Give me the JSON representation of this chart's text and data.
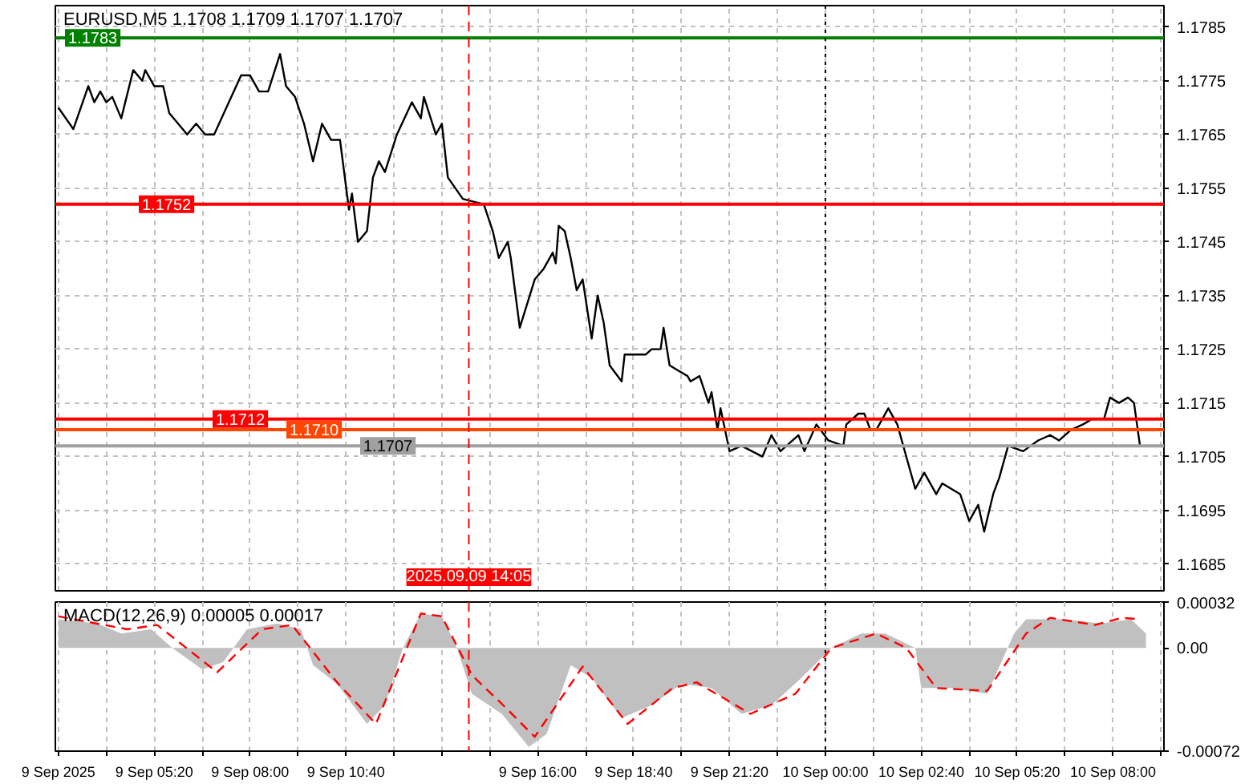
{
  "chart_data": [
    {
      "type": "line",
      "title": "EURUSD,M5 1.1708 1.1709 1.1707 1.1707",
      "color": "#000000",
      "x": [
        "2025-09-09T02:40",
        "2025-09-09T03:05",
        "2025-09-09T03:30",
        "2025-09-09T03:40",
        "2025-09-09T03:50",
        "2025-09-09T04:00",
        "2025-09-09T04:10",
        "2025-09-09T04:25",
        "2025-09-09T04:45",
        "2025-09-09T05:00",
        "2025-09-09T05:05",
        "2025-09-09T05:20",
        "2025-09-09T05:35",
        "2025-09-09T05:45",
        "2025-09-09T06:15",
        "2025-09-09T06:30",
        "2025-09-09T06:45",
        "2025-09-09T07:00",
        "2025-09-09T07:45",
        "2025-09-09T08:00",
        "2025-09-09T08:15",
        "2025-09-09T08:30",
        "2025-09-09T08:50",
        "2025-09-09T09:00",
        "2025-09-09T09:15",
        "2025-09-09T09:30",
        "2025-09-09T09:45",
        "2025-09-09T10:00",
        "2025-09-09T10:15",
        "2025-09-09T10:30",
        "2025-09-09T10:45",
        "2025-09-09T10:50",
        "2025-09-09T11:00",
        "2025-09-09T11:15",
        "2025-09-09T11:25",
        "2025-09-09T11:35",
        "2025-09-09T11:45",
        "2025-09-09T12:05",
        "2025-09-09T12:30",
        "2025-09-09T12:45",
        "2025-09-09T12:50",
        "2025-09-09T13:10",
        "2025-09-09T13:20",
        "2025-09-09T13:30",
        "2025-09-09T13:55",
        "2025-09-09T14:30",
        "2025-09-09T14:45",
        "2025-09-09T14:55",
        "2025-09-09T15:10",
        "2025-09-09T15:15",
        "2025-09-09T15:30",
        "2025-09-09T15:55",
        "2025-09-09T16:10",
        "2025-09-09T16:25",
        "2025-09-09T16:30",
        "2025-09-09T16:35",
        "2025-09-09T16:45",
        "2025-09-09T16:55",
        "2025-09-09T17:05",
        "2025-09-09T17:15",
        "2025-09-09T17:30",
        "2025-09-09T17:40",
        "2025-09-09T17:50",
        "2025-09-09T18:00",
        "2025-09-09T18:20",
        "2025-09-09T18:25",
        "2025-09-09T18:40",
        "2025-09-09T19:00",
        "2025-09-09T19:10",
        "2025-09-09T19:25",
        "2025-09-09T19:30",
        "2025-09-09T19:40",
        "2025-09-09T19:55",
        "2025-09-09T20:10",
        "2025-09-09T20:15",
        "2025-09-09T20:30",
        "2025-09-09T20:45",
        "2025-09-09T20:50",
        "2025-09-09T21:00",
        "2025-09-09T21:05",
        "2025-09-09T21:20",
        "2025-09-09T21:40",
        "2025-09-09T22:15",
        "2025-09-09T22:30",
        "2025-09-09T22:45",
        "2025-09-09T23:15",
        "2025-09-09T23:25",
        "2025-09-09T23:45",
        "2025-09-10T00:05",
        "2025-09-10T00:30",
        "2025-09-10T00:35",
        "2025-09-10T00:55",
        "2025-09-10T01:05",
        "2025-09-10T01:15",
        "2025-09-10T01:25",
        "2025-09-10T01:45",
        "2025-09-10T02:00",
        "2025-09-10T02:20",
        "2025-09-10T02:30",
        "2025-09-10T02:45",
        "2025-09-10T03:05",
        "2025-09-10T03:15",
        "2025-09-10T03:30",
        "2025-09-10T03:45",
        "2025-09-10T04:00",
        "2025-09-10T04:15",
        "2025-09-10T04:25",
        "2025-09-10T04:40",
        "2025-09-10T04:50",
        "2025-09-10T05:05",
        "2025-09-10T05:30",
        "2025-09-10T05:55",
        "2025-09-10T06:15",
        "2025-09-10T06:30",
        "2025-09-10T06:50",
        "2025-09-10T07:10",
        "2025-09-10T07:25",
        "2025-09-10T07:45",
        "2025-09-10T07:55",
        "2025-09-10T08:10",
        "2025-09-10T08:25",
        "2025-09-10T08:35",
        "2025-09-10T08:45"
      ],
      "values": [
        1.177,
        1.1766,
        1.1774,
        1.1771,
        1.1773,
        1.1771,
        1.1772,
        1.1768,
        1.1777,
        1.1775,
        1.1777,
        1.1774,
        1.1774,
        1.1769,
        1.1765,
        1.1767,
        1.1765,
        1.1765,
        1.1776,
        1.1776,
        1.1773,
        1.1773,
        1.178,
        1.1774,
        1.1772,
        1.1767,
        1.176,
        1.1767,
        1.1764,
        1.1764,
        1.1751,
        1.1754,
        1.1745,
        1.1747,
        1.1757,
        1.176,
        1.1758,
        1.1765,
        1.1771,
        1.1768,
        1.1772,
        1.1765,
        1.1767,
        1.1757,
        1.1753,
        1.1752,
        1.1747,
        1.1742,
        1.1745,
        1.1742,
        1.1729,
        1.1738,
        1.174,
        1.1743,
        1.1741,
        1.1748,
        1.1747,
        1.1742,
        1.1736,
        1.1738,
        1.1727,
        1.1735,
        1.173,
        1.1722,
        1.1719,
        1.1724,
        1.1724,
        1.1724,
        1.1725,
        1.1725,
        1.1729,
        1.1722,
        1.1721,
        1.172,
        1.1719,
        1.172,
        1.1715,
        1.1717,
        1.171,
        1.1714,
        1.1706,
        1.1707,
        1.1705,
        1.1709,
        1.1706,
        1.1709,
        1.1706,
        1.1711,
        1.1708,
        1.1707,
        1.1711,
        1.1713,
        1.1713,
        1.171,
        1.171,
        1.1714,
        1.1711,
        1.1703,
        1.1699,
        1.1702,
        1.1698,
        1.17,
        1.1699,
        1.1698,
        1.1693,
        1.1696,
        1.1691,
        1.1698,
        1.1701,
        1.1707,
        1.1706,
        1.1708,
        1.1709,
        1.1708,
        1.171,
        1.1711,
        1.1712,
        1.1712,
        1.1716,
        1.1715,
        1.1716,
        1.1715,
        1.1707
      ],
      "xlim": [
        "2025-09-09T02:35",
        "2025-09-10T09:25"
      ],
      "ylim": [
        1.168,
        1.1789
      ],
      "xticks": [
        {
          "value": "2025-09-09T02:40",
          "label": null
        },
        {
          "value": "2025-09-09T04:00",
          "label": null
        },
        {
          "value": "2025-09-09T05:20",
          "label": null
        },
        {
          "value": "2025-09-09T06:40",
          "label": null
        },
        {
          "value": "2025-09-09T08:00",
          "label": null
        },
        {
          "value": "2025-09-09T09:20",
          "label": null
        },
        {
          "value": "2025-09-09T10:40",
          "label": null
        },
        {
          "value": "2025-09-09T12:00",
          "label": null
        },
        {
          "value": "2025-09-09T13:20",
          "label": null
        },
        {
          "value": "2025-09-09T14:40",
          "label": null
        },
        {
          "value": "2025-09-09T16:00",
          "label": null
        },
        {
          "value": "2025-09-09T17:20",
          "label": null
        },
        {
          "value": "2025-09-09T18:40",
          "label": null
        },
        {
          "value": "2025-09-09T20:00",
          "label": null
        },
        {
          "value": "2025-09-09T21:20",
          "label": null
        },
        {
          "value": "2025-09-09T22:40",
          "label": null
        },
        {
          "value": "2025-09-10T00:00",
          "label": null
        },
        {
          "value": "2025-09-10T01:20",
          "label": null
        },
        {
          "value": "2025-09-10T02:40",
          "label": null
        },
        {
          "value": "2025-09-10T04:00",
          "label": null
        },
        {
          "value": "2025-09-10T05:20",
          "label": null
        },
        {
          "value": "2025-09-10T06:40",
          "label": null
        },
        {
          "value": "2025-09-10T08:00",
          "label": null
        },
        {
          "value": "2025-09-10T09:20",
          "label": null
        }
      ],
      "yticks": [
        1.1685,
        1.1695,
        1.1705,
        1.1715,
        1.1725,
        1.1735,
        1.1745,
        1.1755,
        1.1765,
        1.1775,
        1.1785
      ],
      "tick_labels": "y",
      "grid": true,
      "ref_lines": [
        {
          "axis": "y",
          "value": 1.1783,
          "label": "1.1783",
          "color": "#008000"
        },
        {
          "axis": "y",
          "value": 1.1752,
          "label": "1.1752",
          "color": "#ff0000"
        },
        {
          "axis": "y",
          "value": 1.1712,
          "label": "1.1712",
          "color": "#ff0000"
        },
        {
          "axis": "y",
          "value": 1.171,
          "label": "1.1710",
          "color": "#ff4500"
        },
        {
          "axis": "y",
          "value": 1.1707,
          "label": "1.1707",
          "color": "#a0a0a0"
        },
        {
          "axis": "x",
          "value": "2025-09-09T14:05",
          "label": "2025.09.09 14:05",
          "color": "#ff0000",
          "line_style": "dashed"
        },
        {
          "axis": "x",
          "value": "2025-09-10T00:00",
          "color": "#000000",
          "line_style": "dotted"
        }
      ]
    },
    {
      "type": "line",
      "title": "MACD(12,26,9) 0.00005 0.00017",
      "series": [
        {
          "type": "area",
          "color": "#c0c0c0",
          "x": [
            "2025-09-09T02:40",
            "2025-09-09T03:45",
            "2025-09-09T04:25",
            "2025-09-09T05:15",
            "2025-09-09T05:50",
            "2025-09-09T06:40",
            "2025-09-09T07:15",
            "2025-09-09T07:55",
            "2025-09-09T08:45",
            "2025-09-09T09:25",
            "2025-09-09T09:45",
            "2025-09-09T10:25",
            "2025-09-09T11:15",
            "2025-09-09T11:45",
            "2025-09-09T12:15",
            "2025-09-09T12:45",
            "2025-09-09T13:20",
            "2025-09-09T13:45",
            "2025-09-09T14:10",
            "2025-09-09T15:00",
            "2025-09-09T15:45",
            "2025-09-09T16:15",
            "2025-09-09T16:55",
            "2025-09-09T17:30",
            "2025-09-09T18:20",
            "2025-09-09T19:10",
            "2025-09-09T20:00",
            "2025-09-09T20:50",
            "2025-09-09T21:40",
            "2025-09-09T22:30",
            "2025-09-09T23:20",
            "2025-09-10T00:10",
            "2025-09-10T01:00",
            "2025-09-10T01:40",
            "2025-09-10T02:30",
            "2025-09-10T02:40",
            "2025-09-10T03:30",
            "2025-09-10T04:30",
            "2025-09-10T05:15",
            "2025-09-10T05:35",
            "2025-09-10T06:40",
            "2025-09-10T07:40",
            "2025-09-10T08:30",
            "2025-09-10T08:55"
          ],
          "values": [
            0.0002,
            0.00017,
            0.0001,
            0.00013,
            0,
            -0.00015,
            -0.0001,
            0.00013,
            0.00017,
            0.00013,
            -0.00012,
            -0.00025,
            -0.00053,
            -0.0004,
            0,
            0.00024,
            0.00022,
            0,
            -0.00032,
            -0.00046,
            -0.00069,
            -0.0006,
            -0.00012,
            -0.00021,
            -0.00049,
            -0.0004,
            -0.00025,
            -0.00028,
            -0.00046,
            -0.0004,
            -0.00021,
            0,
            0.0001,
            0.0001,
            0,
            -0.00028,
            -0.00028,
            -0.00032,
            0.0001,
            0.0002,
            0.0002,
            0.00017,
            0.0002,
            0.0001
          ]
        },
        {
          "type": "line",
          "color": "#ff0000",
          "line_style": "dashed",
          "x": [
            "2025-09-09T02:40",
            "2025-09-09T04:35",
            "2025-09-09T05:25",
            "2025-09-09T07:05",
            "2025-09-09T08:20",
            "2025-09-09T09:10",
            "2025-09-09T10:25",
            "2025-09-09T11:30",
            "2025-09-09T12:45",
            "2025-09-09T13:20",
            "2025-09-09T14:10",
            "2025-09-09T15:00",
            "2025-09-09T15:55",
            "2025-09-09T17:15",
            "2025-09-09T18:30",
            "2025-09-09T19:45",
            "2025-09-09T20:25",
            "2025-09-09T21:55",
            "2025-09-09T23:10",
            "2025-09-10T00:10",
            "2025-09-10T01:25",
            "2025-09-10T02:15",
            "2025-09-10T03:05",
            "2025-09-10T04:30",
            "2025-09-10T05:35",
            "2025-09-10T06:15",
            "2025-09-10T07:30",
            "2025-09-10T08:15",
            "2025-09-10T08:45"
          ],
          "values": [
            0.00022,
            0.00013,
            0.00016,
            -0.00017,
            0.00013,
            0.00016,
            -0.00024,
            -0.00053,
            0.00024,
            0.00022,
            -0.00019,
            -0.00039,
            -0.00062,
            -0.00013,
            -0.00053,
            -0.00028,
            -0.00024,
            -0.00046,
            -0.00032,
            0,
            0.0001,
            0,
            -0.00028,
            -0.0003,
            0.0001,
            0.00021,
            0.00016,
            0.00021,
            0.0002
          ]
        }
      ],
      "xlim": [
        "2025-09-09T02:35",
        "2025-09-10T09:25"
      ],
      "ylim": [
        -0.00072,
        0.00032
      ],
      "xticks": [
        {
          "value": "2025-09-09T02:40",
          "label": "9 Sep 2025"
        },
        {
          "value": "2025-09-09T04:00",
          "label": null
        },
        {
          "value": "2025-09-09T05:20",
          "label": "9 Sep 05:20"
        },
        {
          "value": "2025-09-09T06:40",
          "label": null
        },
        {
          "value": "2025-09-09T08:00",
          "label": "9 Sep 08:00"
        },
        {
          "value": "2025-09-09T09:20",
          "label": null
        },
        {
          "value": "2025-09-09T10:40",
          "label": "9 Sep 10:40"
        },
        {
          "value": "2025-09-09T12:00",
          "label": null
        },
        {
          "value": "2025-09-09T13:20",
          "label": null
        },
        {
          "value": "2025-09-09T14:40",
          "label": null
        },
        {
          "value": "2025-09-09T16:00",
          "label": "9 Sep 16:00"
        },
        {
          "value": "2025-09-09T17:20",
          "label": null
        },
        {
          "value": "2025-09-09T18:40",
          "label": "9 Sep 18:40"
        },
        {
          "value": "2025-09-09T20:00",
          "label": null
        },
        {
          "value": "2025-09-09T21:20",
          "label": "9 Sep 21:20"
        },
        {
          "value": "2025-09-09T22:40",
          "label": null
        },
        {
          "value": "2025-09-10T00:00",
          "label": "10 Sep 00:00"
        },
        {
          "value": "2025-09-10T01:20",
          "label": null
        },
        {
          "value": "2025-09-10T02:40",
          "label": "10 Sep 02:40"
        },
        {
          "value": "2025-09-10T04:00",
          "label": null
        },
        {
          "value": "2025-09-10T05:20",
          "label": "10 Sep 05:20"
        },
        {
          "value": "2025-09-10T06:40",
          "label": null
        },
        {
          "value": "2025-09-10T08:00",
          "label": "10 Sep 08:00"
        },
        {
          "value": "2025-09-10T09:20",
          "label": null
        }
      ],
      "yticks": [
        {
          "value": 0.00032,
          "label": "0.00032"
        },
        {
          "value": 0,
          "label": "0.00"
        },
        {
          "value": -0.00072,
          "label": "-0.00072"
        }
      ],
      "grid": "x",
      "ref_lines": [
        {
          "axis": "x",
          "value": "2025-09-09T14:05",
          "color": "#ff0000",
          "line_style": "dashed"
        },
        {
          "axis": "x",
          "value": "2025-09-10T00:00",
          "color": "#000000",
          "line_style": "dotted"
        }
      ]
    }
  ]
}
